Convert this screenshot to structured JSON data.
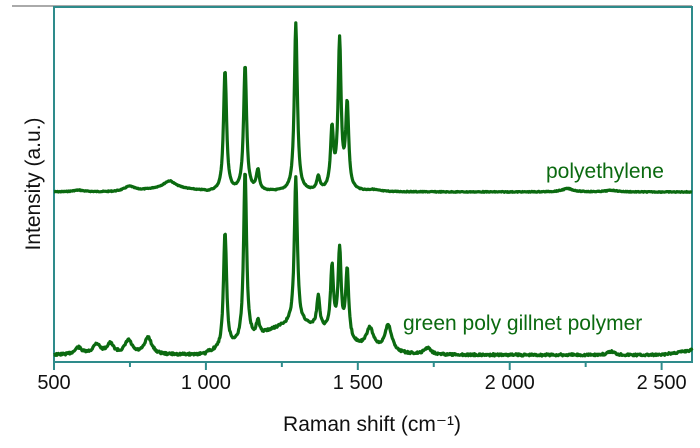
{
  "chart_data": {
    "type": "line",
    "title": "",
    "xlabel": "Raman shift (cm⁻¹)",
    "ylabel": "Intensity (a.u.)",
    "xlim": [
      500,
      2600
    ],
    "xticks": [
      500,
      1000,
      1500,
      2000,
      2500
    ],
    "xtick_labels": [
      "500",
      "1 000",
      "1 500",
      "2 000",
      "2 500"
    ],
    "minor_xticks": [
      750,
      1250,
      1750,
      2250
    ],
    "y_ticks_shown": false,
    "grid": false,
    "legend": "inline labels",
    "line_color": "#0b6a10",
    "frame_color": "#2e8b8b",
    "series": [
      {
        "name": "polyethylene",
        "offset": "upper",
        "peaks_cm": [
          {
            "x": 580,
            "rel": 0.01
          },
          {
            "x": 748,
            "rel": 0.03
          },
          {
            "x": 880,
            "rel": 0.04
          },
          {
            "x": 1063,
            "rel": 0.72
          },
          {
            "x": 1129,
            "rel": 0.75
          },
          {
            "x": 1171,
            "rel": 0.12
          },
          {
            "x": 1296,
            "rel": 1.0
          },
          {
            "x": 1370,
            "rel": 0.08
          },
          {
            "x": 1415,
            "rel": 0.35
          },
          {
            "x": 1440,
            "rel": 0.88
          },
          {
            "x": 1465,
            "rel": 0.5
          },
          {
            "x": 1550,
            "rel": 0.01
          },
          {
            "x": 2190,
            "rel": 0.02
          },
          {
            "x": 2335,
            "rel": 0.01
          }
        ]
      },
      {
        "name": "green poly gillnet polymer",
        "offset": "lower",
        "peaks_cm": [
          {
            "x": 580,
            "rel": 0.04
          },
          {
            "x": 640,
            "rel": 0.06
          },
          {
            "x": 685,
            "rel": 0.06
          },
          {
            "x": 745,
            "rel": 0.08
          },
          {
            "x": 810,
            "rel": 0.1
          },
          {
            "x": 1063,
            "rel": 0.68
          },
          {
            "x": 1129,
            "rel": 1.0
          },
          {
            "x": 1171,
            "rel": 0.08
          },
          {
            "x": 1296,
            "rel": 0.85
          },
          {
            "x": 1370,
            "rel": 0.18
          },
          {
            "x": 1415,
            "rel": 0.38
          },
          {
            "x": 1440,
            "rel": 0.5
          },
          {
            "x": 1465,
            "rel": 0.4
          },
          {
            "x": 1540,
            "rel": 0.12
          },
          {
            "x": 1600,
            "rel": 0.16
          },
          {
            "x": 1730,
            "rel": 0.04
          },
          {
            "x": 2335,
            "rel": 0.02
          }
        ]
      }
    ]
  },
  "labels": {
    "series_upper": "polyethylene",
    "series_lower": "green poly gillnet polymer",
    "x_title": "Raman shift (cm⁻¹)",
    "y_title": "Intensity (a.u.)"
  }
}
